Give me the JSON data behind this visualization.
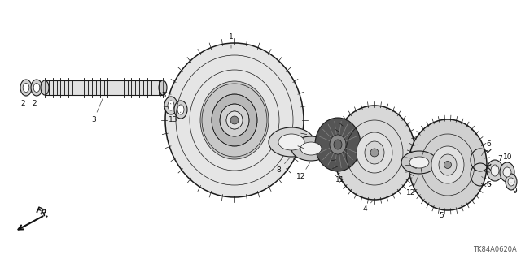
{
  "bg_color": "#ffffff",
  "fig_width": 6.4,
  "fig_height": 3.19,
  "dpi": 100,
  "diagram_code": "TK84A0620A",
  "fr_label": "FR.",
  "line_color": "#1a1a1a",
  "label_fontsize": 6.5,
  "code_fontsize": 6,
  "fr_fontsize": 7
}
